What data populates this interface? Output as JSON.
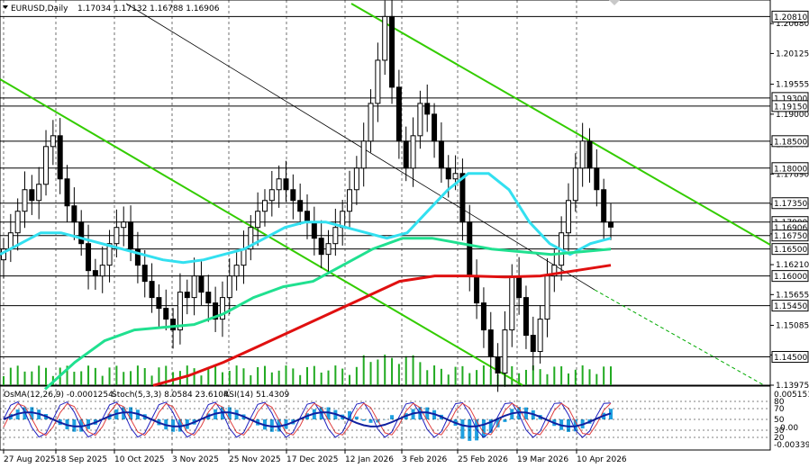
{
  "title": {
    "symbol": "EURUSD,Daily",
    "ohlc": "1.17034 1.17132 1.16788 1.16906"
  },
  "indicator_label": {
    "osma": "OsMA(12,26,9) -0.0001254",
    "stoch": "Stoch(5,3,3) 8.0584 23.6104",
    "rsi": "RSI(14) 51.4309"
  },
  "price_axis_ticks": [
    "1.20680",
    "1.20125",
    "1.19555",
    "1.19000",
    "1.18440",
    "1.17890",
    "1.17330",
    "1.16780",
    "1.16210",
    "1.15655",
    "1.15085",
    "1.14535",
    "1.13975"
  ],
  "price_levels": [
    {
      "label": "1.20810",
      "value": 1.2081
    },
    {
      "label": "1.19300",
      "value": 1.193
    },
    {
      "label": "1.19150",
      "value": 1.1915
    },
    {
      "label": "1.18500",
      "value": 1.185
    },
    {
      "label": "1.18000",
      "value": 1.18
    },
    {
      "label": "1.17350",
      "value": 1.1735
    },
    {
      "label": "1.17000",
      "value": 1.17
    },
    {
      "label": "1.16906",
      "value": 1.16906
    },
    {
      "label": "1.16750",
      "value": 1.1675
    },
    {
      "label": "1.16500",
      "value": 1.165
    },
    {
      "label": "1.16000",
      "value": 1.16
    },
    {
      "label": "1.15450",
      "value": 1.1545
    },
    {
      "label": "1.14500",
      "value": 1.145
    }
  ],
  "indicator_axis": {
    "labels": [
      "0.005151",
      "-0.00339"
    ],
    "stoch_levels": [
      "80",
      "70",
      "50",
      "30",
      "20"
    ],
    "rsi_zero": "0.00"
  },
  "date_labels": [
    "27 Aug 2025",
    "18 Sep 2025",
    "10 Oct 2025",
    "3 Nov 2025",
    "25 Nov 2025",
    "17 Dec 2025",
    "12 Jan 2026",
    "3 Feb 2026",
    "25 Feb 2026",
    "19 Mar 2026",
    "10 Apr 2026"
  ],
  "colors": {
    "bg": "#ffffff",
    "candle": "#000000",
    "level_line": "#000000",
    "grid": "#000000",
    "ema_fast": "#33e0f0",
    "ema_mid": "#20e090",
    "ema_slow": "#e01010",
    "trend_channel": "#33cc00",
    "dashed_trend": "#00aa00",
    "volume": "#22aa22",
    "osma": "#1ea0e0",
    "stoch_main": "#2020c0",
    "stoch_signal": "#e04040",
    "rsi": "#1020a0"
  },
  "chart_data": {
    "type": "candlestick",
    "symbol": "EURUSD",
    "timeframe": "Daily",
    "ylim": [
      1.13975,
      1.2105
    ],
    "x": [
      "27 Aug 2025",
      "18 Sep 2025",
      "10 Oct 2025",
      "3 Nov 2025",
      "25 Nov 2025",
      "17 Dec 2025",
      "12 Jan 2026",
      "3 Feb 2026",
      "25 Feb 2026",
      "19 Mar 2026",
      "10 Apr 2026"
    ],
    "close_path": [
      1.165,
      1.168,
      1.172,
      1.176,
      1.174,
      1.177,
      1.184,
      1.186,
      1.178,
      1.173,
      1.17,
      1.166,
      1.161,
      1.16,
      1.162,
      1.166,
      1.169,
      1.17,
      1.165,
      1.162,
      1.159,
      1.156,
      1.154,
      1.152,
      1.15,
      1.157,
      1.156,
      1.16,
      1.157,
      1.155,
      1.152,
      1.156,
      1.16,
      1.162,
      1.165,
      1.169,
      1.172,
      1.174,
      1.176,
      1.178,
      1.176,
      1.174,
      1.172,
      1.17,
      1.167,
      1.164,
      1.166,
      1.169,
      1.172,
      1.176,
      1.18,
      1.185,
      1.192,
      1.2,
      1.2081,
      1.195,
      1.185,
      1.18,
      1.186,
      1.192,
      1.19,
      1.185,
      1.18,
      1.178,
      1.179,
      1.17,
      1.16,
      1.155,
      1.15,
      1.145,
      1.142,
      1.15,
      1.16,
      1.156,
      1.149,
      1.146,
      1.152,
      1.16,
      1.162,
      1.168,
      1.174,
      1.18,
      1.185,
      1.18,
      1.176,
      1.17,
      1.16906
    ],
    "ema_fast": [
      1.164,
      1.166,
      1.168,
      1.168,
      1.167,
      1.166,
      1.165,
      1.164,
      1.163,
      1.1625,
      1.163,
      1.164,
      1.165,
      1.167,
      1.169,
      1.17,
      1.17,
      1.169,
      1.168,
      1.167,
      1.168,
      1.172,
      1.176,
      1.179,
      1.179,
      1.176,
      1.17,
      1.166,
      1.164,
      1.166,
      1.167
    ],
    "ema_mid": [
      1.139,
      1.144,
      1.148,
      1.15,
      1.1505,
      1.151,
      1.153,
      1.156,
      1.158,
      1.159,
      1.162,
      1.165,
      1.167,
      1.167,
      1.166,
      1.165,
      1.1645,
      1.164,
      1.1645,
      1.165
    ],
    "ema_slow": [
      1.1397,
      1.1415,
      1.144,
      1.147,
      1.15,
      1.153,
      1.156,
      1.159,
      1.16,
      1.16,
      1.1598,
      1.16,
      1.161,
      1.162
    ],
    "trendlines": [
      {
        "name": "channel upper",
        "from": [
          "12 Jan 2026",
          1.2105
        ],
        "to": [
          "10 Apr 2026+",
          1.169
        ]
      },
      {
        "name": "channel lower",
        "from": [
          "27 Aug 2025",
          1.195
        ],
        "to": [
          "25 Feb 2026",
          1.1397
        ]
      },
      {
        "name": "long-term down",
        "from": [
          "18 Sep 2025",
          1.2105
        ],
        "to": [
          "10 Apr 2026+",
          1.1397
        ]
      }
    ]
  }
}
